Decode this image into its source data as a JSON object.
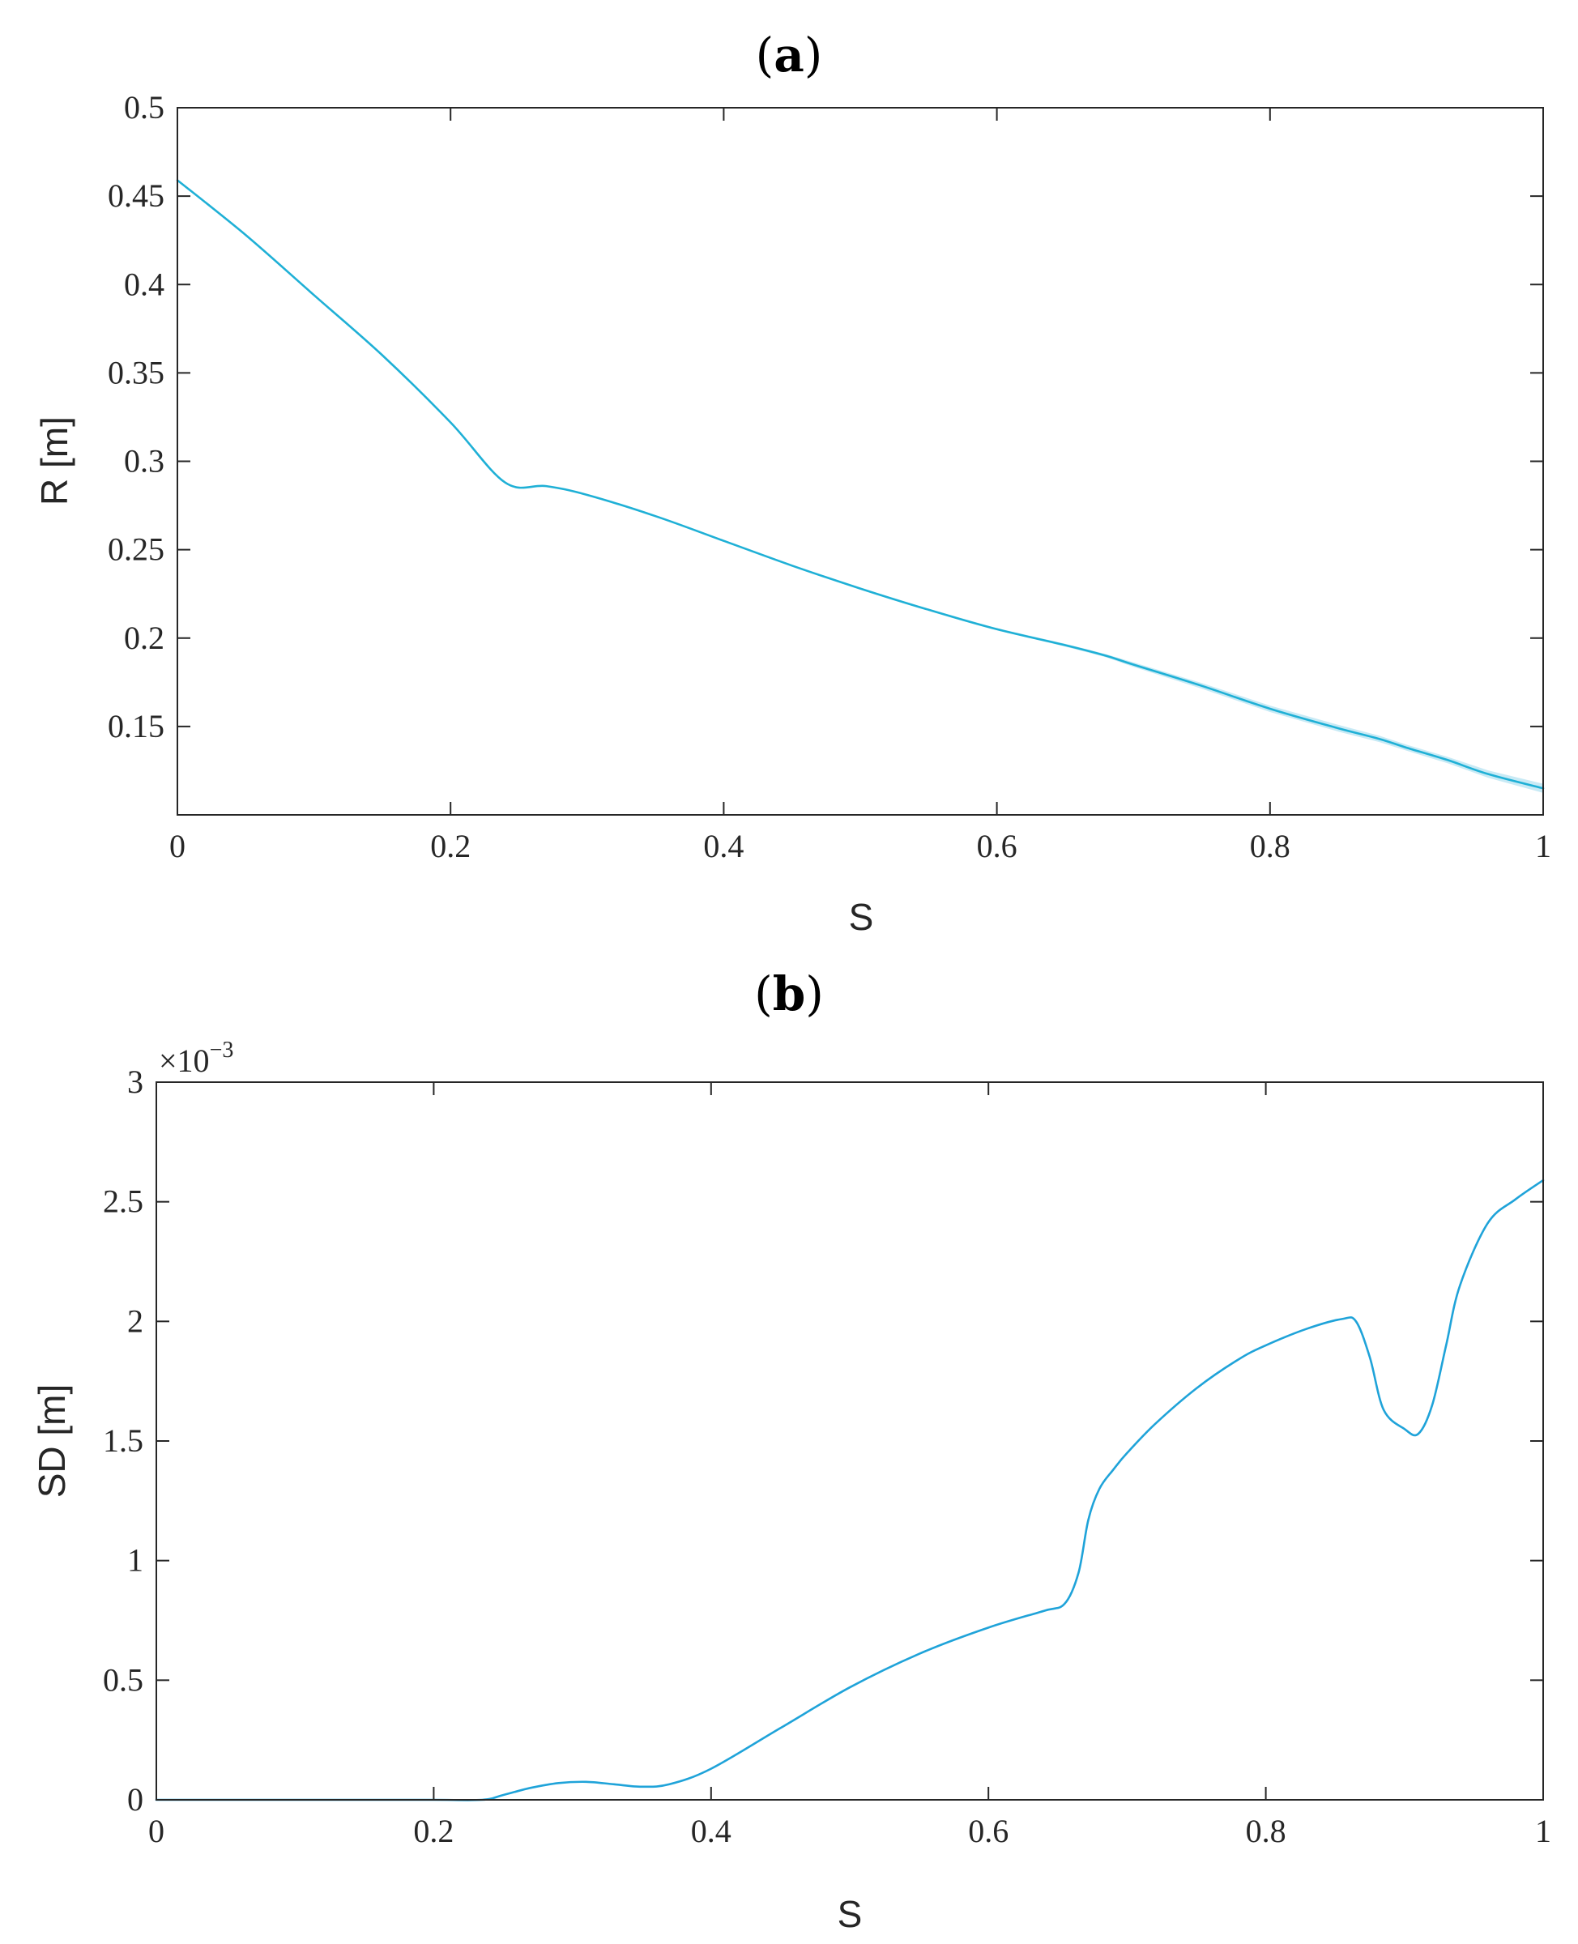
{
  "chart_data": [
    {
      "type": "line",
      "panel_label": "a",
      "xlabel": "S",
      "ylabel": "R [m]",
      "xlim": [
        0,
        1
      ],
      "ylim": [
        0.1,
        0.5
      ],
      "grid": false,
      "x_ticks": [
        "0",
        "0.2",
        "0.4",
        "0.6",
        "0.8",
        "1"
      ],
      "y_ticks": [
        "0.15",
        "0.2",
        "0.25",
        "0.3",
        "0.35",
        "0.4",
        "0.45",
        "0.5"
      ],
      "color": "#1fb0d6",
      "band_color": "#9bd9ec",
      "series": [
        {
          "x": [
            0,
            0.05,
            0.1,
            0.15,
            0.2,
            0.24,
            0.27,
            0.3,
            0.35,
            0.4,
            0.45,
            0.5,
            0.55,
            0.6,
            0.65,
            0.68,
            0.7,
            0.75,
            0.8,
            0.85,
            0.88,
            0.9,
            0.93,
            0.96,
            1.0
          ],
          "values": [
            0.459,
            0.428,
            0.394,
            0.36,
            0.322,
            0.288,
            0.286,
            0.281,
            0.269,
            0.255,
            0.241,
            0.228,
            0.216,
            0.205,
            0.196,
            0.19,
            0.185,
            0.173,
            0.16,
            0.149,
            0.143,
            0.138,
            0.131,
            0.123,
            0.115
          ],
          "band_halfwidth": [
            0,
            0,
            0,
            0,
            0,
            0,
            0,
            0.0001,
            0.0001,
            0.0002,
            0.0003,
            0.0004,
            0.0005,
            0.0006,
            0.0008,
            0.0009,
            0.0013,
            0.0016,
            0.0018,
            0.0019,
            0.0018,
            0.0017,
            0.0018,
            0.0021,
            0.0026
          ]
        }
      ]
    },
    {
      "type": "line",
      "panel_label": "b",
      "xlabel": "S",
      "ylabel": "SD [m]",
      "axis_multiplier": "×10",
      "axis_multiplier_exp": "−3",
      "xlim": [
        0,
        1
      ],
      "ylim": [
        0,
        3
      ],
      "grid": false,
      "x_ticks": [
        "0",
        "0.2",
        "0.4",
        "0.6",
        "0.8",
        "1"
      ],
      "y_ticks": [
        "0",
        "0.5",
        "1",
        "1.5",
        "2",
        "2.5",
        "3"
      ],
      "color": "#1fa3d9",
      "series": [
        {
          "x": [
            0,
            0.05,
            0.1,
            0.15,
            0.2,
            0.235,
            0.25,
            0.27,
            0.29,
            0.31,
            0.33,
            0.35,
            0.37,
            0.4,
            0.45,
            0.5,
            0.55,
            0.6,
            0.64,
            0.655,
            0.665,
            0.672,
            0.68,
            0.69,
            0.7,
            0.72,
            0.75,
            0.78,
            0.8,
            0.83,
            0.855,
            0.865,
            0.875,
            0.885,
            0.9,
            0.91,
            0.92,
            0.93,
            0.94,
            0.96,
            0.98,
            1.0
          ],
          "values": [
            0,
            0,
            0,
            0,
            0,
            0,
            0.02,
            0.05,
            0.07,
            0.075,
            0.065,
            0.055,
            0.065,
            0.13,
            0.3,
            0.47,
            0.61,
            0.72,
            0.79,
            0.82,
            0.95,
            1.17,
            1.3,
            1.38,
            1.45,
            1.57,
            1.72,
            1.84,
            1.9,
            1.97,
            2.01,
            2.0,
            1.85,
            1.63,
            1.55,
            1.53,
            1.65,
            1.9,
            2.15,
            2.41,
            2.51,
            2.59
          ]
        }
      ]
    }
  ]
}
